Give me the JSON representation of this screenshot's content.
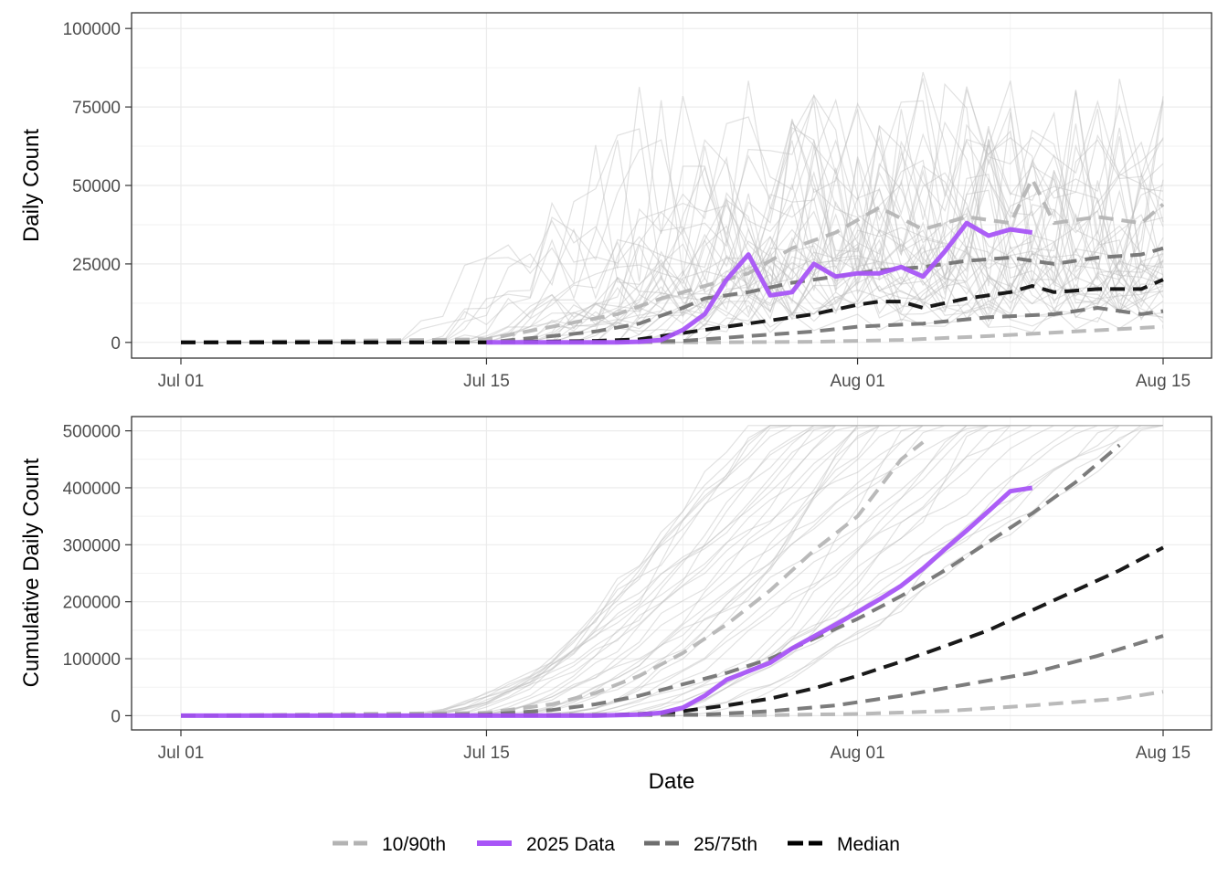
{
  "chart_data": [
    {
      "type": "line",
      "panel": "top",
      "title": "",
      "xlabel": "",
      "ylabel": "Daily Count",
      "x_ticks": [
        "Jul 01",
        "Jul 15",
        "Aug 01",
        "Aug 15"
      ],
      "y_ticks": [
        "0",
        "25000",
        "50000",
        "75000",
        "100000"
      ],
      "ylim": [
        -5000,
        105000
      ],
      "grid": true,
      "series": [
        {
          "name": "2025 Data",
          "color": "#a855f7",
          "x": [
            "Jul 15",
            "Jul 16",
            "Jul 17",
            "Jul 18",
            "Jul 19",
            "Jul 20",
            "Jul 21",
            "Jul 22",
            "Jul 23",
            "Jul 24",
            "Jul 25",
            "Jul 26",
            "Jul 27",
            "Jul 28",
            "Jul 29",
            "Jul 30",
            "Jul 31",
            "Aug 01",
            "Aug 02",
            "Aug 03",
            "Aug 04",
            "Aug 05",
            "Aug 06",
            "Aug 07",
            "Aug 08",
            "Aug 09"
          ],
          "values": [
            0,
            0,
            0,
            0,
            0,
            0,
            0,
            200,
            800,
            4000,
            9000,
            20000,
            28000,
            15000,
            16000,
            25000,
            21000,
            22000,
            22000,
            24000,
            21000,
            29000,
            38000,
            34000,
            36000,
            35000
          ]
        },
        {
          "name": "Median",
          "color": "#000000",
          "x": [
            "Jul 01",
            "Jul 15",
            "Jul 20",
            "Jul 22",
            "Jul 24",
            "Jul 26",
            "Jul 28",
            "Jul 30",
            "Aug 01",
            "Aug 02",
            "Aug 03",
            "Aug 04",
            "Aug 06",
            "Aug 08",
            "Aug 09",
            "Aug 10",
            "Aug 12",
            "Aug 13",
            "Aug 14",
            "Aug 15"
          ],
          "values": [
            0,
            0,
            500,
            1000,
            3000,
            5000,
            7000,
            9000,
            12000,
            13000,
            13000,
            11000,
            14000,
            16000,
            18000,
            16000,
            17000,
            17000,
            17000,
            20000
          ]
        },
        {
          "name": "25/75th",
          "color": "#6e6e6e",
          "x": [
            "Jul 01",
            "Jul 15",
            "Jul 18",
            "Jul 20",
            "Jul 22",
            "Jul 24",
            "Jul 25",
            "Jul 27",
            "Jul 29",
            "Jul 31",
            "Aug 02",
            "Aug 04",
            "Aug 06",
            "Aug 08",
            "Aug 10",
            "Aug 12",
            "Aug 14",
            "Aug 15"
          ],
          "values": [
            0,
            0,
            2000,
            3500,
            6000,
            11000,
            14000,
            16000,
            19000,
            21000,
            23000,
            24000,
            26000,
            27000,
            25000,
            27000,
            28000,
            30000
          ]
        },
        {
          "name": "25/75th",
          "color": "#6e6e6e",
          "x": [
            "Jul 01",
            "Jul 20",
            "Jul 24",
            "Jul 27",
            "Jul 30",
            "Aug 01",
            "Aug 04",
            "Aug 07",
            "Aug 10",
            "Aug 12",
            "Aug 14",
            "Aug 15"
          ],
          "values": [
            0,
            0,
            500,
            2000,
            3500,
            5000,
            6000,
            8000,
            9000,
            11000,
            9000,
            10000
          ]
        },
        {
          "name": "10/90th",
          "color": "#b3b3b3",
          "x": [
            "Jul 01",
            "Jul 15",
            "Jul 18",
            "Jul 21",
            "Jul 23",
            "Jul 25",
            "Jul 27",
            "Jul 29",
            "Jul 31",
            "Aug 02",
            "Aug 04",
            "Aug 06",
            "Aug 08",
            "Aug 09",
            "Aug 10",
            "Aug 12",
            "Aug 14",
            "Aug 15"
          ],
          "values": [
            0,
            1000,
            5000,
            9000,
            14000,
            18000,
            22000,
            30000,
            35000,
            43000,
            36000,
            40000,
            38000,
            52000,
            38000,
            40000,
            38000,
            44000
          ]
        },
        {
          "name": "10/90th",
          "color": "#b3b3b3",
          "x": [
            "Jul 01",
            "Jul 25",
            "Jul 30",
            "Aug 03",
            "Aug 07",
            "Aug 11",
            "Aug 15"
          ],
          "values": [
            0,
            0,
            200,
            800,
            2000,
            3500,
            5000
          ]
        }
      ]
    },
    {
      "type": "line",
      "panel": "bottom",
      "title": "",
      "xlabel": "Date",
      "ylabel": "Cumulative Daily Count",
      "x_ticks": [
        "Jul 01",
        "Jul 15",
        "Aug 01",
        "Aug 15"
      ],
      "y_ticks": [
        "0",
        "100000",
        "200000",
        "300000",
        "400000",
        "500000"
      ],
      "ylim": [
        -25000,
        525000
      ],
      "grid": true,
      "series": [
        {
          "name": "2025 Data",
          "color": "#a855f7",
          "x": [
            "Jul 01",
            "Jul 15",
            "Jul 20",
            "Jul 22",
            "Jul 23",
            "Jul 24",
            "Jul 25",
            "Jul 26",
            "Jul 27",
            "Jul 28",
            "Jul 29",
            "Jul 30",
            "Jul 31",
            "Aug 01",
            "Aug 02",
            "Aug 03",
            "Aug 04",
            "Aug 05",
            "Aug 06",
            "Aug 07",
            "Aug 08",
            "Aug 09"
          ],
          "values": [
            0,
            0,
            0,
            2000,
            5000,
            14000,
            35000,
            63000,
            78000,
            93000,
            118000,
            139000,
            160000,
            182000,
            204000,
            228000,
            258000,
            292000,
            325000,
            359000,
            394000,
            400000
          ]
        },
        {
          "name": "Median",
          "color": "#000000",
          "x": [
            "Jul 01",
            "Jul 20",
            "Jul 22",
            "Jul 24",
            "Jul 26",
            "Jul 28",
            "Jul 30",
            "Aug 01",
            "Aug 03",
            "Aug 05",
            "Aug 07",
            "Aug 09",
            "Aug 11",
            "Aug 13",
            "Aug 15"
          ],
          "values": [
            0,
            0,
            3000,
            8000,
            18000,
            30000,
            48000,
            70000,
            95000,
            122000,
            150000,
            185000,
            220000,
            255000,
            295000
          ]
        },
        {
          "name": "25/75th",
          "color": "#6e6e6e",
          "x": [
            "Jul 01",
            "Jul 15",
            "Jul 18",
            "Jul 20",
            "Jul 22",
            "Jul 24",
            "Jul 26",
            "Jul 28",
            "Jul 30",
            "Aug 01",
            "Aug 03",
            "Aug 05",
            "Aug 07",
            "Aug 09",
            "Aug 11",
            "Aug 13"
          ],
          "values": [
            0,
            2000,
            10000,
            20000,
            35000,
            55000,
            75000,
            100000,
            135000,
            170000,
            210000,
            255000,
            305000,
            355000,
            410000,
            475000
          ]
        },
        {
          "name": "25/75th",
          "color": "#6e6e6e",
          "x": [
            "Jul 01",
            "Jul 25",
            "Jul 28",
            "Jul 31",
            "Aug 03",
            "Aug 06",
            "Aug 09",
            "Aug 12",
            "Aug 15"
          ],
          "values": [
            0,
            2000,
            8000,
            18000,
            35000,
            55000,
            75000,
            105000,
            140000
          ]
        },
        {
          "name": "10/90th",
          "color": "#b3b3b3",
          "x": [
            "Jul 01",
            "Jul 15",
            "Jul 18",
            "Jul 20",
            "Jul 22",
            "Jul 24",
            "Jul 26",
            "Jul 28",
            "Jul 30",
            "Aug 01",
            "Aug 02",
            "Aug 03",
            "Aug 04"
          ],
          "values": [
            0,
            5000,
            20000,
            40000,
            70000,
            110000,
            160000,
            220000,
            290000,
            350000,
            400000,
            450000,
            480000
          ]
        },
        {
          "name": "10/90th",
          "color": "#b3b3b3",
          "x": [
            "Jul 01",
            "Jul 28",
            "Aug 01",
            "Aug 05",
            "Aug 09",
            "Aug 13",
            "Aug 15"
          ],
          "values": [
            0,
            1000,
            3000,
            8000,
            18000,
            30000,
            42000
          ]
        }
      ]
    }
  ],
  "legend": {
    "placement": "bottom",
    "items": [
      {
        "label": "10/90th",
        "color": "#b3b3b3",
        "style": "dashed"
      },
      {
        "label": "2025 Data",
        "color": "#a855f7",
        "style": "solid"
      },
      {
        "label": "25/75th",
        "color": "#6e6e6e",
        "style": "dashed"
      },
      {
        "label": "Median",
        "color": "#000000",
        "style": "dashed"
      }
    ]
  }
}
